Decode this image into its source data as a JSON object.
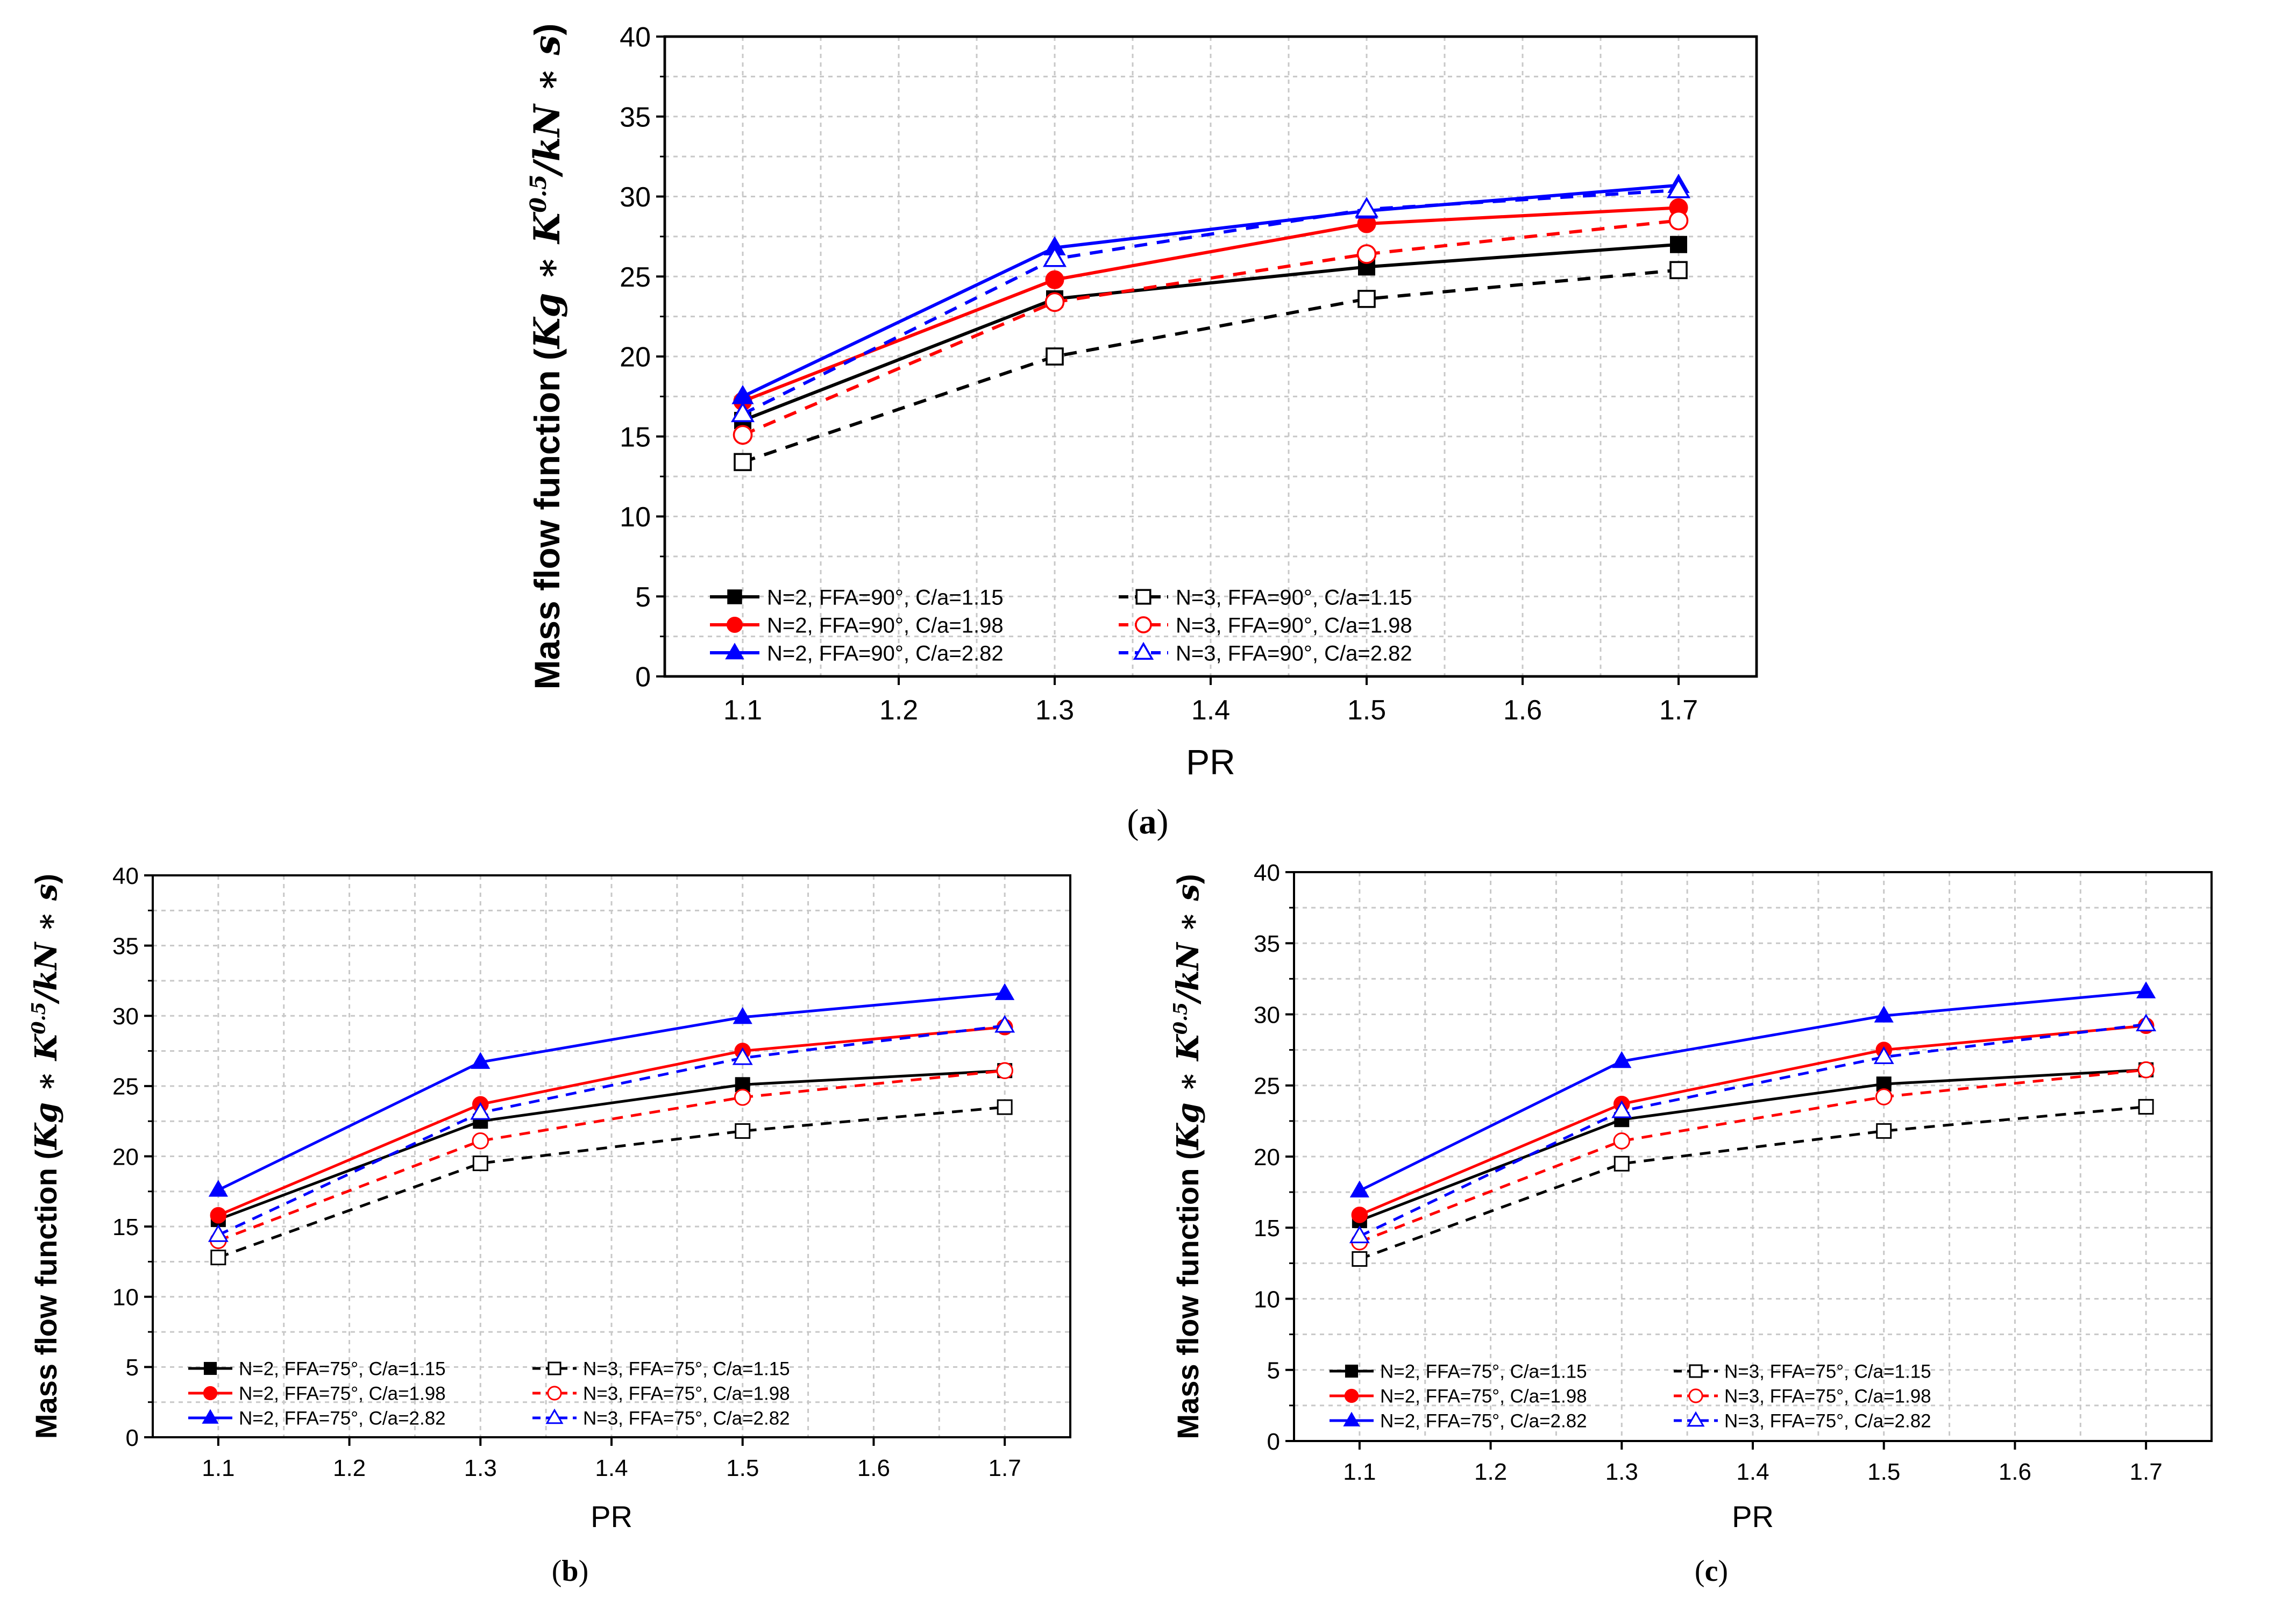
{
  "chart_data": [
    {
      "panel": "a",
      "type": "line",
      "caption": "a",
      "xlabel": "PR",
      "ylabel": {
        "prefix": "Mass flow function (",
        "math": "Kg ∗ K",
        "sup": "0.5",
        "math2": "/kN ∗ s",
        "suffix": ")"
      },
      "xlim": [
        1.05,
        1.75
      ],
      "ylim": [
        0,
        40
      ],
      "xticks": [
        "1.1",
        "1.2",
        "1.3",
        "1.4",
        "1.5",
        "1.6",
        "1.7"
      ],
      "yticks": [
        "0",
        "5",
        "10",
        "15",
        "20",
        "25",
        "30",
        "35",
        "40"
      ],
      "grid": true,
      "legend_position": "bottom-left",
      "x": [
        1.1,
        1.3,
        1.5,
        1.7
      ],
      "series": [
        {
          "name": "N=2, FFA=90°, C/a=1.15",
          "color": "#000000",
          "dashed": false,
          "marker": "square",
          "filled": true,
          "values": [
            16.0,
            23.6,
            25.6,
            27.0
          ]
        },
        {
          "name": "N=2, FFA=90°, C/a=1.98",
          "color": "#ff0000",
          "dashed": false,
          "marker": "circle",
          "filled": true,
          "values": [
            17.2,
            24.8,
            28.3,
            29.3
          ]
        },
        {
          "name": "N=2, FFA=90°, C/a=2.82",
          "color": "#0000ff",
          "dashed": false,
          "marker": "triangle",
          "filled": true,
          "values": [
            17.5,
            26.8,
            29.1,
            30.7
          ]
        },
        {
          "name": "N=3, FFA=90°, C/a=1.15",
          "color": "#000000",
          "dashed": true,
          "marker": "square",
          "filled": false,
          "values": [
            13.4,
            20.0,
            23.6,
            25.4
          ]
        },
        {
          "name": "N=3, FFA=90°, C/a=1.98",
          "color": "#ff0000",
          "dashed": true,
          "marker": "circle",
          "filled": false,
          "values": [
            15.1,
            23.4,
            26.4,
            28.5
          ]
        },
        {
          "name": "N=3, FFA=90°, C/a=2.82",
          "color": "#0000ff",
          "dashed": true,
          "marker": "triangle",
          "filled": false,
          "values": [
            16.4,
            26.1,
            29.2,
            30.4
          ]
        }
      ]
    },
    {
      "panel": "b",
      "type": "line",
      "caption": "b",
      "xlabel": "PR",
      "ylabel": {
        "prefix": "Mass flow function (",
        "math": "Kg ∗ K",
        "sup": "0.5",
        "math2": "/kN ∗ s",
        "suffix": ")"
      },
      "xlim": [
        1.05,
        1.75
      ],
      "ylim": [
        0,
        40
      ],
      "xticks": [
        "1.1",
        "1.2",
        "1.3",
        "1.4",
        "1.5",
        "1.6",
        "1.7"
      ],
      "yticks": [
        "0",
        "5",
        "10",
        "15",
        "20",
        "25",
        "30",
        "35",
        "40"
      ],
      "grid": true,
      "legend_position": "bottom-left",
      "x": [
        1.1,
        1.3,
        1.5,
        1.7
      ],
      "series": [
        {
          "name": "N=2, FFA=75°, C/a=1.15",
          "color": "#000000",
          "dashed": false,
          "marker": "square",
          "filled": true,
          "values": [
            15.5,
            22.5,
            25.1,
            26.1
          ]
        },
        {
          "name": "N=2, FFA=75°, C/a=1.98",
          "color": "#ff0000",
          "dashed": false,
          "marker": "circle",
          "filled": true,
          "values": [
            15.8,
            23.7,
            27.5,
            29.2
          ]
        },
        {
          "name": "N=2, FFA=75°, C/a=2.82",
          "color": "#0000ff",
          "dashed": false,
          "marker": "triangle",
          "filled": true,
          "values": [
            17.6,
            26.7,
            29.9,
            31.6
          ]
        },
        {
          "name": "N=3, FFA=75°, C/a=1.15",
          "color": "#000000",
          "dashed": true,
          "marker": "square",
          "filled": false,
          "values": [
            12.8,
            19.5,
            21.8,
            23.5
          ]
        },
        {
          "name": "N=3, FFA=75°, C/a=1.98",
          "color": "#ff0000",
          "dashed": true,
          "marker": "circle",
          "filled": false,
          "values": [
            14.0,
            21.1,
            24.2,
            26.1
          ]
        },
        {
          "name": "N=3, FFA=75°, C/a=2.82",
          "color": "#0000ff",
          "dashed": true,
          "marker": "triangle",
          "filled": false,
          "values": [
            14.4,
            23.1,
            27.0,
            29.3
          ]
        }
      ]
    },
    {
      "panel": "c",
      "type": "line",
      "caption": "c",
      "xlabel": "PR",
      "ylabel": {
        "prefix": "Mass flow function (",
        "math": "Kg ∗ K",
        "sup": "0.5",
        "math2": "/kN ∗ s",
        "suffix": ")"
      },
      "xlim": [
        1.05,
        1.75
      ],
      "ylim": [
        0,
        40
      ],
      "xticks": [
        "1.1",
        "1.2",
        "1.3",
        "1.4",
        "1.5",
        "1.6",
        "1.7"
      ],
      "yticks": [
        "0",
        "5",
        "10",
        "15",
        "20",
        "25",
        "30",
        "35",
        "40"
      ],
      "grid": true,
      "legend_position": "bottom-left",
      "x": [
        1.1,
        1.3,
        1.5,
        1.7
      ],
      "series": [
        {
          "name": "N=2, FFA=75°, C/a=1.15",
          "color": "#000000",
          "dashed": false,
          "marker": "square",
          "filled": true,
          "values": [
            15.5,
            22.6,
            25.1,
            26.1
          ]
        },
        {
          "name": "N=2, FFA=75°, C/a=1.98",
          "color": "#ff0000",
          "dashed": false,
          "marker": "circle",
          "filled": true,
          "values": [
            15.9,
            23.7,
            27.5,
            29.2
          ]
        },
        {
          "name": "N=2, FFA=75°, C/a=2.82",
          "color": "#0000ff",
          "dashed": false,
          "marker": "triangle",
          "filled": true,
          "values": [
            17.6,
            26.7,
            29.9,
            31.6
          ]
        },
        {
          "name": "N=3, FFA=75°, C/a=1.15",
          "color": "#000000",
          "dashed": true,
          "marker": "square",
          "filled": false,
          "values": [
            12.8,
            19.5,
            21.8,
            23.5
          ]
        },
        {
          "name": "N=3, FFA=75°, C/a=1.98",
          "color": "#ff0000",
          "dashed": true,
          "marker": "circle",
          "filled": false,
          "values": [
            14.0,
            21.1,
            24.2,
            26.1
          ]
        },
        {
          "name": "N=3, FFA=75°, C/a=2.82",
          "color": "#0000ff",
          "dashed": true,
          "marker": "triangle",
          "filled": false,
          "values": [
            14.4,
            23.2,
            27.0,
            29.3
          ]
        }
      ]
    }
  ]
}
